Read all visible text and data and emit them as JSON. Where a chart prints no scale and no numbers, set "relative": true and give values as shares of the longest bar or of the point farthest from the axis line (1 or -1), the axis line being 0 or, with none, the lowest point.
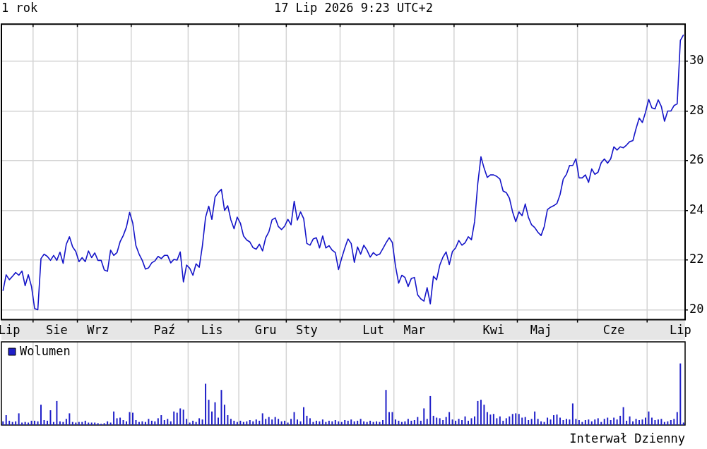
{
  "chart_data": [
    {
      "type": "line",
      "title": "1 rok",
      "subtitle": "17 Lip 2026 9:23 UTC+2",
      "color": "#1414c8",
      "categories": [
        null,
        null,
        "Lip",
        null,
        null,
        null,
        null,
        null,
        null,
        null,
        null,
        null,
        null,
        null,
        null,
        null,
        null,
        "Sie",
        null,
        null,
        null,
        null,
        null,
        null,
        null,
        null,
        null,
        null,
        null,
        null,
        "Wrz",
        null,
        null,
        null,
        null,
        null,
        null,
        null,
        null,
        null,
        null,
        null,
        null,
        null,
        null,
        null,
        null,
        null,
        null,
        null,
        null,
        "Paź",
        null,
        null,
        null,
        null,
        null,
        null,
        null,
        null,
        null,
        null,
        null,
        null,
        null,
        null,
        "Lis",
        null,
        null,
        null,
        null,
        null,
        null,
        null,
        null,
        null,
        null,
        null,
        null,
        null,
        null,
        null,
        null,
        "Gru",
        null,
        null,
        null,
        null,
        null,
        null,
        null,
        null,
        null,
        null,
        null,
        null,
        "Sty",
        null,
        null,
        null,
        null,
        null,
        null,
        null,
        null,
        null,
        null,
        null,
        null,
        null,
        null,
        null,
        null,
        null,
        null,
        null,
        null,
        "Lut",
        null,
        null,
        null,
        null,
        null,
        null,
        null,
        null,
        null,
        null,
        null,
        null,
        "Mar",
        null,
        null,
        null,
        null,
        null,
        null,
        null,
        null,
        null,
        null,
        null,
        null,
        null,
        null,
        null,
        null,
        null,
        null,
        null,
        null,
        null,
        null,
        null,
        null,
        "Kwi",
        null,
        null,
        null,
        null,
        null,
        null,
        null,
        null,
        null,
        null,
        null,
        null,
        null,
        null,
        "Maj",
        null,
        null,
        null,
        null,
        null,
        null,
        null,
        null,
        null,
        null,
        null,
        null,
        null,
        null,
        null,
        null,
        null,
        null,
        null,
        null,
        null,
        null,
        "Cze",
        null,
        null,
        null,
        null,
        null,
        null,
        null,
        null,
        null,
        null,
        null,
        null,
        null,
        null,
        null,
        null,
        null,
        null,
        null,
        null,
        "Lip",
        null
      ],
      "values": [
        20.76,
        21.41,
        21.21,
        21.35,
        21.5,
        21.39,
        21.56,
        20.97,
        21.41,
        20.94,
        20.05,
        20.0,
        22.06,
        22.24,
        22.15,
        21.99,
        22.19,
        21.99,
        22.32,
        21.87,
        22.64,
        22.94,
        22.53,
        22.35,
        21.94,
        22.1,
        21.94,
        22.37,
        22.1,
        22.29,
        21.99,
        21.99,
        21.6,
        21.55,
        22.4,
        22.19,
        22.3,
        22.74,
        22.99,
        23.33,
        23.92,
        23.49,
        22.58,
        22.24,
        21.99,
        21.64,
        21.69,
        21.89,
        21.97,
        22.15,
        22.06,
        22.19,
        22.19,
        21.89,
        22.03,
        22.0,
        22.33,
        21.12,
        21.8,
        21.67,
        21.39,
        21.85,
        21.71,
        22.58,
        23.72,
        24.17,
        23.64,
        24.54,
        24.72,
        24.85,
        24.0,
        24.19,
        23.62,
        23.26,
        23.73,
        23.49,
        22.97,
        22.81,
        22.73,
        22.5,
        22.44,
        22.64,
        22.37,
        22.9,
        23.14,
        23.62,
        23.7,
        23.35,
        23.23,
        23.37,
        23.64,
        23.42,
        24.37,
        23.61,
        23.94,
        23.67,
        22.67,
        22.6,
        22.85,
        22.9,
        22.49,
        22.97,
        22.49,
        22.58,
        22.4,
        22.3,
        21.62,
        22.08,
        22.49,
        22.85,
        22.67,
        21.91,
        22.53,
        22.24,
        22.6,
        22.4,
        22.12,
        22.3,
        22.19,
        22.24,
        22.46,
        22.69,
        22.9,
        22.71,
        21.76,
        21.07,
        21.39,
        21.3,
        20.94,
        21.26,
        21.3,
        20.6,
        20.44,
        20.35,
        20.89,
        20.24,
        21.35,
        21.21,
        21.8,
        22.12,
        22.33,
        21.82,
        22.35,
        22.49,
        22.79,
        22.6,
        22.7,
        22.94,
        22.82,
        23.55,
        25.08,
        26.16,
        25.7,
        25.33,
        25.43,
        25.43,
        25.37,
        25.26,
        24.78,
        24.72,
        24.49,
        23.94,
        23.55,
        23.94,
        23.79,
        24.26,
        23.72,
        23.42,
        23.31,
        23.12,
        22.99,
        23.35,
        24.03,
        24.13,
        24.19,
        24.28,
        24.64,
        25.26,
        25.45,
        25.81,
        25.81,
        26.08,
        25.31,
        25.31,
        25.43,
        25.13,
        25.67,
        25.45,
        25.54,
        25.92,
        26.07,
        25.9,
        26.08,
        26.56,
        26.43,
        26.56,
        26.52,
        26.63,
        26.77,
        26.81,
        27.29,
        27.72,
        27.54,
        27.95,
        28.47,
        28.13,
        28.09,
        28.45,
        28.18,
        27.59,
        28.0,
        28.0,
        28.22,
        28.29,
        30.84,
        31.07
      ],
      "ylim": [
        19.6,
        31.5
      ],
      "yticks": [
        20,
        22,
        24,
        26,
        28,
        30
      ],
      "grid": true
    },
    {
      "type": "bar",
      "relative": true,
      "legend": "top left",
      "grid": "x",
      "annotations": [
        "Interwał Dzienny"
      ],
      "categories": [
        null,
        null,
        null,
        null,
        null,
        null,
        null,
        null,
        null,
        null,
        null,
        null,
        null,
        null,
        null,
        null,
        null,
        null,
        null,
        null,
        null,
        null,
        null,
        null,
        null,
        null,
        null,
        null,
        null,
        null,
        null,
        null,
        null,
        null,
        null,
        null,
        null,
        null,
        null,
        null,
        null,
        null,
        null,
        null,
        null,
        null,
        null,
        null,
        null,
        null,
        null,
        null,
        null,
        null,
        null,
        null,
        null,
        null,
        null,
        null,
        null,
        null,
        null,
        null,
        null,
        null,
        null,
        null,
        null,
        null,
        null,
        null,
        null,
        null,
        null,
        null,
        null,
        null,
        null,
        null,
        null,
        null,
        null,
        null,
        null,
        null,
        null,
        null,
        null,
        null,
        null,
        null,
        null,
        null,
        null,
        null,
        null,
        null,
        null,
        null,
        null,
        null,
        null,
        null,
        null,
        null,
        null,
        null,
        null,
        null,
        null,
        null,
        null,
        null,
        null,
        null,
        null,
        null,
        null,
        null,
        null,
        null,
        null,
        null,
        null,
        null,
        null,
        null,
        null,
        null,
        null,
        null,
        null,
        null,
        null,
        null,
        null,
        null,
        null,
        null,
        null,
        null,
        null,
        null,
        null,
        null,
        null,
        null,
        null,
        null,
        null,
        null,
        null,
        null,
        null,
        null,
        null,
        null,
        null,
        null,
        null,
        null,
        null,
        null,
        null,
        null,
        null,
        null,
        null,
        null,
        null,
        null,
        null,
        null,
        null,
        null,
        null,
        null,
        null,
        null,
        null,
        null,
        null,
        null,
        null,
        null,
        null,
        null,
        null,
        null,
        null,
        null,
        null,
        null,
        null,
        null,
        null,
        null,
        null,
        null,
        null,
        null,
        null,
        null,
        null,
        null,
        null,
        null,
        null,
        null,
        null,
        null,
        null,
        null,
        null,
        null
      ],
      "series": [
        {
          "name": "Wolumen",
          "color": "#1f1fc8",
          "values": [
            0.06,
            0.16,
            0.07,
            0.05,
            0.06,
            0.19,
            0.04,
            0.05,
            0.04,
            0.07,
            0.07,
            0.06,
            0.33,
            0.08,
            0.07,
            0.24,
            0.05,
            0.39,
            0.06,
            0.05,
            0.1,
            0.19,
            0.05,
            0.04,
            0.05,
            0.05,
            0.07,
            0.04,
            0.04,
            0.04,
            0.03,
            0.02,
            0.03,
            0.06,
            0.04,
            0.22,
            0.11,
            0.12,
            0.08,
            0.06,
            0.21,
            0.2,
            0.08,
            0.05,
            0.06,
            0.05,
            0.1,
            0.07,
            0.06,
            0.11,
            0.16,
            0.08,
            0.1,
            0.06,
            0.22,
            0.2,
            0.27,
            0.25,
            0.1,
            0.04,
            0.07,
            0.05,
            0.11,
            0.09,
            0.67,
            0.41,
            0.22,
            0.37,
            0.12,
            0.57,
            0.33,
            0.16,
            0.1,
            0.07,
            0.05,
            0.07,
            0.05,
            0.06,
            0.08,
            0.06,
            0.09,
            0.07,
            0.19,
            0.1,
            0.13,
            0.09,
            0.13,
            0.1,
            0.06,
            0.07,
            0.04,
            0.1,
            0.21,
            0.09,
            0.06,
            0.29,
            0.15,
            0.11,
            0.05,
            0.07,
            0.06,
            0.09,
            0.05,
            0.07,
            0.06,
            0.08,
            0.06,
            0.05,
            0.08,
            0.07,
            0.09,
            0.06,
            0.07,
            0.1,
            0.06,
            0.05,
            0.07,
            0.05,
            0.06,
            0.05,
            0.08,
            0.57,
            0.21,
            0.21,
            0.09,
            0.07,
            0.05,
            0.06,
            0.1,
            0.07,
            0.08,
            0.13,
            0.07,
            0.27,
            0.1,
            0.47,
            0.15,
            0.12,
            0.11,
            0.08,
            0.13,
            0.21,
            0.09,
            0.07,
            0.1,
            0.08,
            0.14,
            0.07,
            0.11,
            0.14,
            0.39,
            0.41,
            0.33,
            0.21,
            0.17,
            0.18,
            0.11,
            0.14,
            0.07,
            0.11,
            0.14,
            0.18,
            0.19,
            0.18,
            0.12,
            0.13,
            0.08,
            0.1,
            0.22,
            0.1,
            0.06,
            0.05,
            0.12,
            0.09,
            0.16,
            0.17,
            0.12,
            0.08,
            0.1,
            0.09,
            0.35,
            0.1,
            0.08,
            0.05,
            0.08,
            0.09,
            0.06,
            0.09,
            0.11,
            0.05,
            0.1,
            0.12,
            0.08,
            0.12,
            0.09,
            0.15,
            0.29,
            0.07,
            0.14,
            0.06,
            0.1,
            0.08,
            0.09,
            0.12,
            0.22,
            0.12,
            0.08,
            0.09,
            0.1,
            0.05,
            0.06,
            0.08,
            0.1,
            0.21,
            1.0,
            0.04
          ]
        }
      ]
    }
  ]
}
